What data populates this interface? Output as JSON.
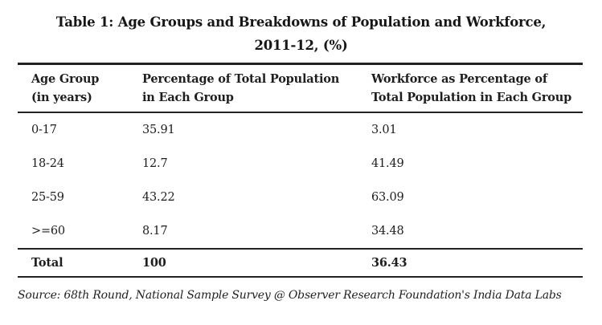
{
  "title": {
    "line1": "Table 1: Age Groups and Breakdowns of Population and Workforce,",
    "line2": "2011-12, (%)"
  },
  "table": {
    "columns": [
      {
        "line1": "Age Group",
        "line2": "(in years)"
      },
      {
        "line1": "Percentage of Total Population",
        "line2": "in Each Group"
      },
      {
        "line1": "Workforce as Percentage of",
        "line2": "Total Population in Each Group"
      }
    ],
    "rows": [
      {
        "age_group": "0-17",
        "population_pct": "35.91",
        "workforce_pct": "3.01"
      },
      {
        "age_group": "18-24",
        "population_pct": "12.7",
        "workforce_pct": "41.49"
      },
      {
        "age_group": "25-59",
        "population_pct": "43.22",
        "workforce_pct": "63.09"
      },
      {
        "age_group": ">=60",
        "population_pct": "8.17",
        "workforce_pct": "34.48"
      }
    ],
    "total_row": {
      "label": "Total",
      "population_pct": "100",
      "workforce_pct": "36.43"
    }
  },
  "source_note": "Source: 68th Round, National Sample Survey @ Observer Research Foundation's India Data Labs",
  "colors": {
    "text": "#1e1e1e",
    "rule_lines": "#222222",
    "background": "#ffffff"
  },
  "chart_data": {
    "type": "table",
    "title": "Table 1: Age Groups and Breakdowns of Population and Workforce, 2011-12, (%)",
    "columns": [
      "Age Group (in years)",
      "Percentage of Total Population in Each Group",
      "Workforce as Percentage of Total Population in Each Group"
    ],
    "rows": [
      [
        "0-17",
        35.91,
        3.01
      ],
      [
        "18-24",
        12.7,
        41.49
      ],
      [
        "25-59",
        43.22,
        63.09
      ],
      [
        ">=60",
        8.17,
        34.48
      ]
    ],
    "total_row": [
      "Total",
      100,
      36.43
    ],
    "source": "Source: 68th Round, National Sample Survey @ Observer Research Foundation's India Data Labs"
  }
}
